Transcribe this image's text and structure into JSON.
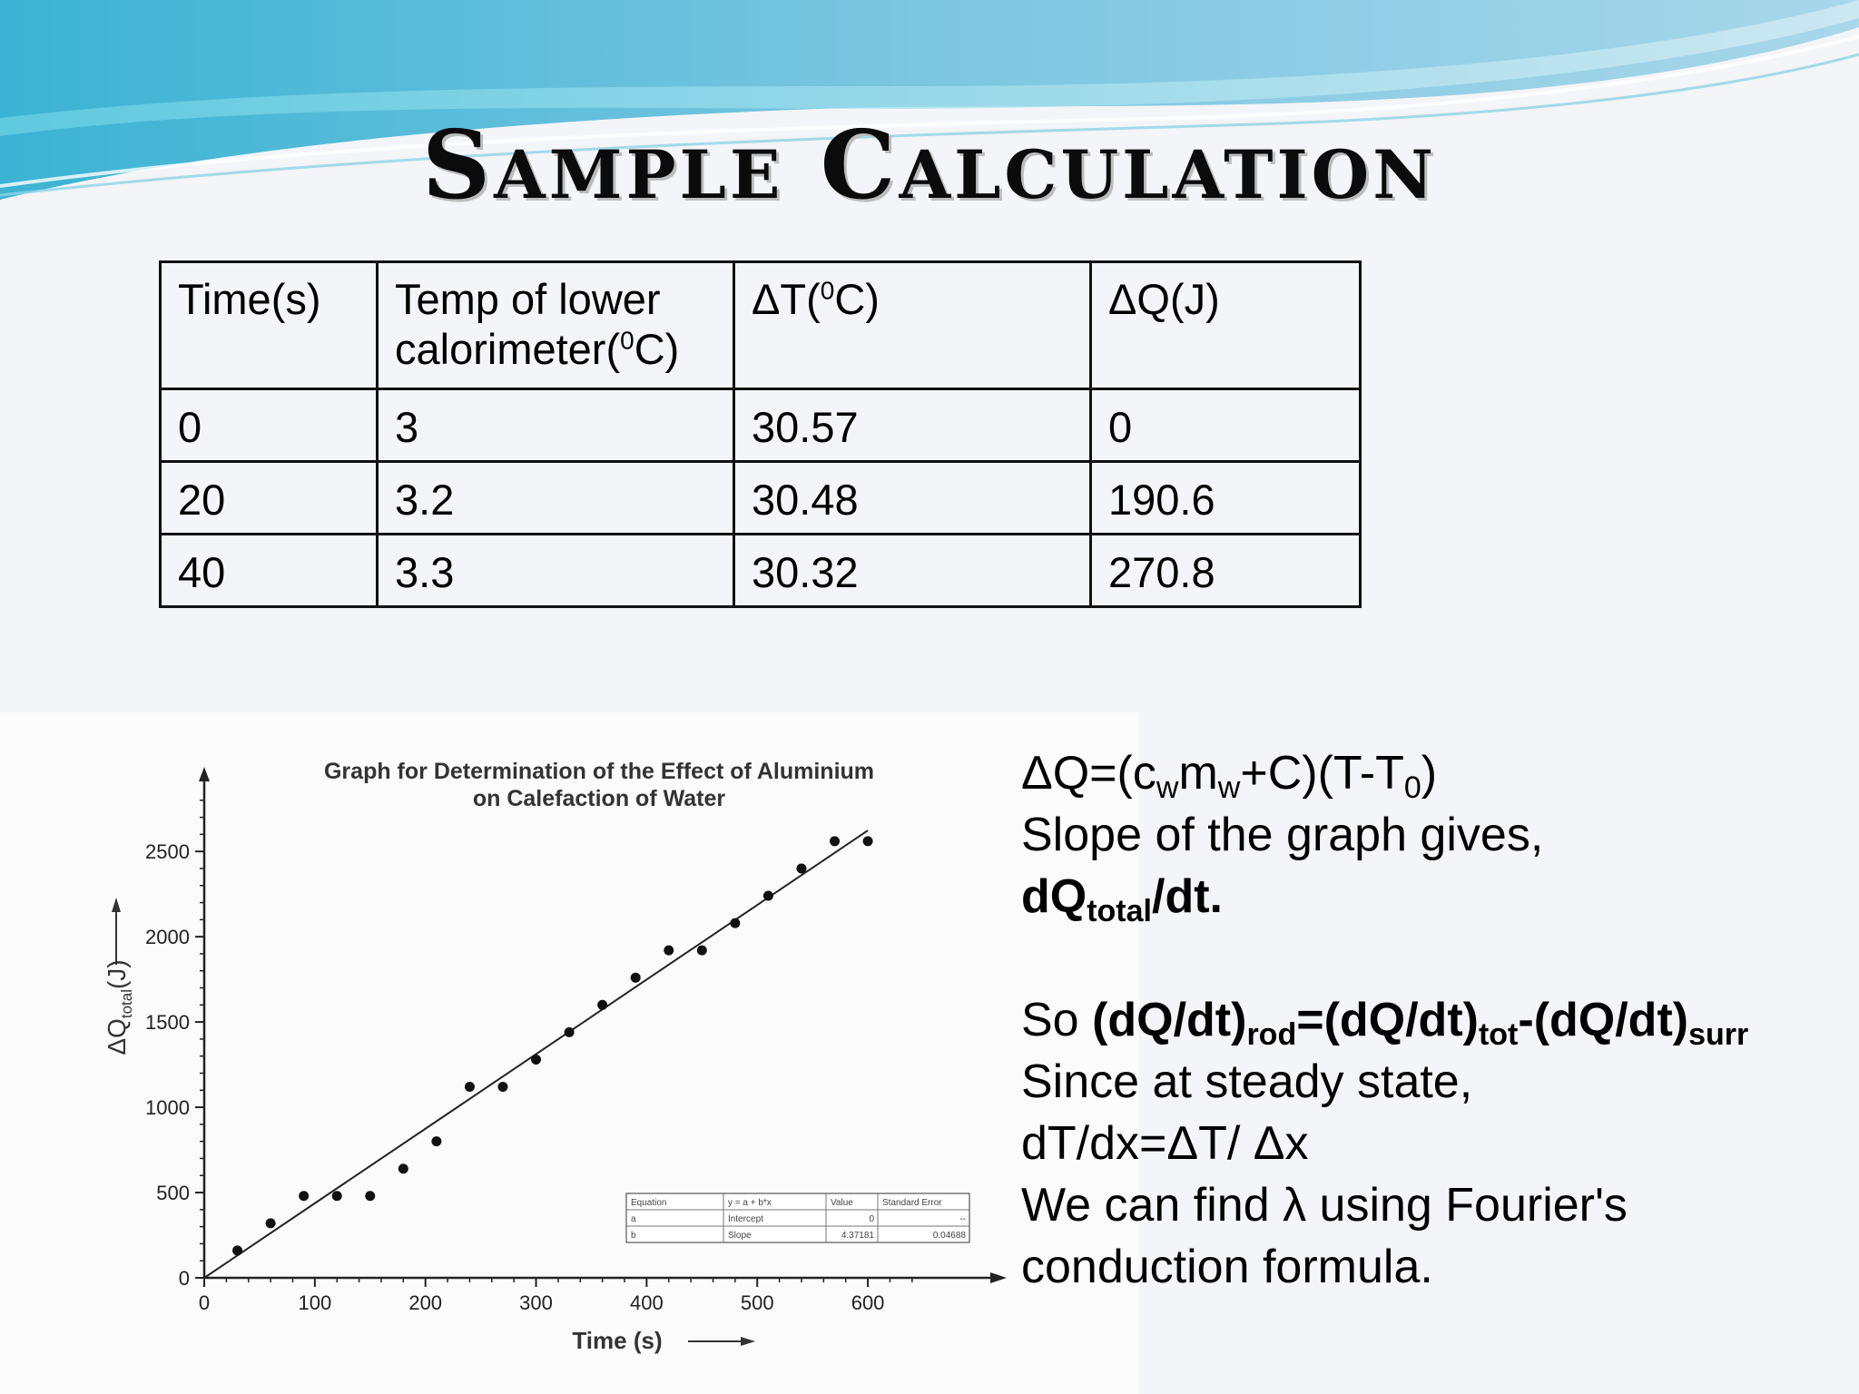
{
  "slide": {
    "title": "Sample Calculation"
  },
  "table": {
    "headers": [
      "Time(s)",
      "Temp of lower calorimeter(⁰C)",
      "ΔT(⁰C)",
      "ΔQ(J)"
    ],
    "header_parts": {
      "temp_line1": "Temp of lower",
      "temp_line2_pre": "calorimeter(",
      "temp_line2_sup": "0",
      "temp_line2_post": "C)",
      "dt_pre": "ΔT(",
      "dt_sup": "0",
      "dt_post": "C)"
    },
    "rows": [
      [
        "0",
        "3",
        "30.57",
        "0"
      ],
      [
        "20",
        "3.2",
        "30.48",
        "190.6"
      ],
      [
        "40",
        "3.3",
        "30.32",
        "270.8"
      ]
    ]
  },
  "chart_data": {
    "type": "scatter",
    "title": "Graph for Determination of the Effect of Aluminium on Calefaction of Water",
    "title_lines": [
      "Graph for Determination of the Effect of Aluminium",
      "on Calefaction of Water"
    ],
    "xlabel": "Time (s)",
    "ylabel": "ΔQtotal(J)",
    "ylabel_parts": {
      "main": "ΔQ",
      "sub": "total",
      "unit": "(J)"
    },
    "xlim": [
      0,
      650
    ],
    "ylim": [
      0,
      2900
    ],
    "xticks": [
      0,
      100,
      200,
      300,
      400,
      500,
      600
    ],
    "yticks": [
      0,
      500,
      1000,
      1500,
      2000,
      2500
    ],
    "series": [
      {
        "x": [
          30,
          60,
          90,
          120,
          150,
          180,
          210,
          240,
          270,
          300,
          330,
          360,
          390,
          420,
          450,
          480,
          510,
          540,
          570,
          600
        ],
        "y": [
          160,
          320,
          480,
          480,
          480,
          640,
          800,
          1120,
          1120,
          1280,
          1440,
          1600,
          1760,
          1920,
          1920,
          2080,
          2240,
          2400,
          2560,
          2560
        ]
      }
    ],
    "fit_line": {
      "intercept": 0,
      "slope": 4.37181
    },
    "fit_table": {
      "rows": [
        [
          "Equation",
          "y = a + b*x",
          "Value",
          "Standard Error"
        ],
        [
          "a",
          "Intercept",
          "0",
          "--"
        ],
        [
          "b",
          "Slope",
          "4.37181",
          "0.04688"
        ]
      ]
    },
    "grid": false,
    "marker_color": "#111111"
  },
  "explanation": {
    "eq1": {
      "a": "ΔQ=(c",
      "s1": "w",
      "b": "m",
      "s2": "w",
      "c": "+C)(T-T",
      "s3": "0",
      "d": ")"
    },
    "line2": "Slope of the graph gives,",
    "line3": {
      "a": "dQ",
      "s1": "total",
      "b": "/dt."
    },
    "line4": {
      "pre": "So ",
      "a": "(dQ/dt)",
      "s1": "rod",
      "b": "=(dQ/dt)",
      "s2": "tot",
      "c": "-(dQ/dt)",
      "s3": "surr"
    },
    "line5": "Since at steady state,",
    "line6": "dT/dx=ΔT/ Δx",
    "line7": "We can find λ using Fourier's",
    "line8": "conduction formula."
  }
}
